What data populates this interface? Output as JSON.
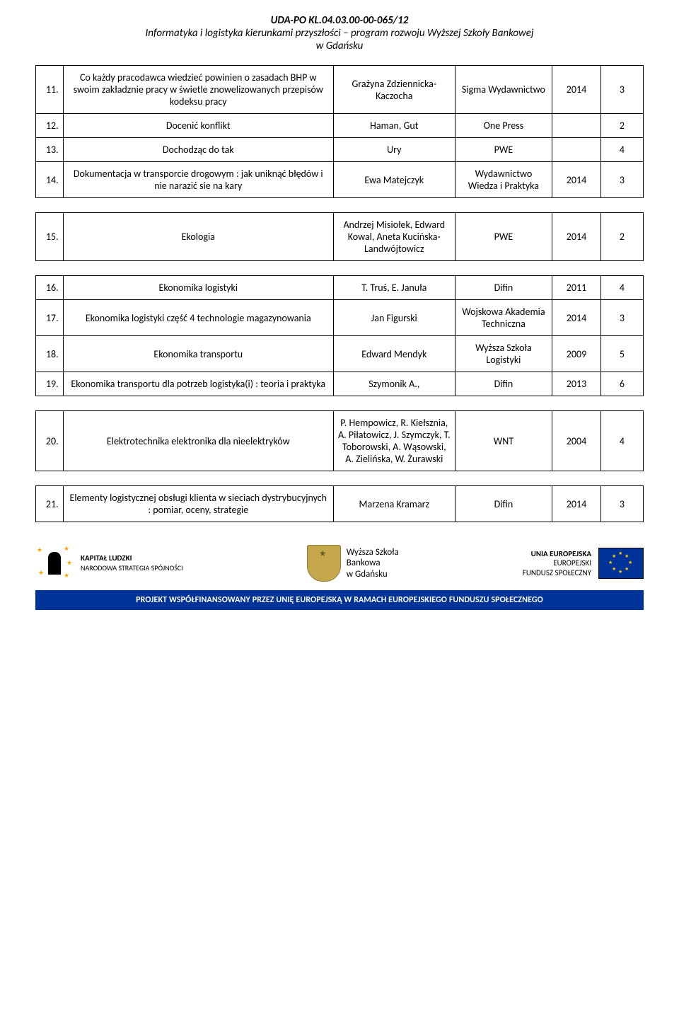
{
  "header": {
    "line1": "UDA-PO KL.04.03.00-00-065/12",
    "line2a": "Informatyka i logistyka kierunkami przyszłości – program rozwoju Wyższej Szkoły Bankowej",
    "line2b": "w Gdańsku"
  },
  "table1": {
    "rows": [
      {
        "num": "11.",
        "title": "Co każdy pracodawca wiedzieć powinien o zasadach BHP w swoim zakładznie pracy w świetle znowelizowanych przepisów kodeksu pracy",
        "author": "Grażyna Zdziennicka-Kaczocha",
        "pub": "Sigma Wydawnictwo",
        "year": "2014",
        "qty": "3"
      },
      {
        "num": "12.",
        "title": "Docenić konflikt",
        "author": "Haman, Gut",
        "pub": "One Press",
        "year": "",
        "qty": "2"
      },
      {
        "num": "13.",
        "title": "Dochodząc do tak",
        "author": "Ury",
        "pub": "PWE",
        "year": "",
        "qty": "4"
      },
      {
        "num": "14.",
        "title": "Dokumentacja w transporcie drogowym : jak uniknąć błędów i nie narazić sie na kary",
        "author": "Ewa Matejczyk",
        "pub": "Wydawnictwo Wiedza i Praktyka",
        "year": "2014",
        "qty": "3"
      }
    ]
  },
  "table2": {
    "rows": [
      {
        "num": "15.",
        "title": "Ekologia",
        "author": "Andrzej Misiołek, Edward Kowal, Aneta Kucińska-Landwójtowicz",
        "pub": "PWE",
        "year": "2014",
        "qty": "2"
      }
    ]
  },
  "table3": {
    "rows": [
      {
        "num": "16.",
        "title": "Ekonomika logistyki",
        "author": "T. Truś, E. Januła",
        "pub": "Difin",
        "year": "2011",
        "qty": "4"
      },
      {
        "num": "17.",
        "title": "Ekonomika logistyki część 4 technologie magazynowania",
        "author": "Jan Figurski",
        "pub": "Wojskowa Akademia Techniczna",
        "year": "2014",
        "qty": "3"
      },
      {
        "num": "18.",
        "title": "Ekonomika transportu",
        "author": "Edward Mendyk",
        "pub": "Wyższa Szkoła Logistyki",
        "year": "2009",
        "qty": "5"
      },
      {
        "num": "19.",
        "title": "Ekonomika transportu dla potrzeb logistyka(i) : teoria i praktyka",
        "author": "Szymonik A.,",
        "pub": "Difin",
        "year": "2013",
        "qty": "6"
      }
    ]
  },
  "table4": {
    "rows": [
      {
        "num": "20.",
        "title": "Elektrotechnika elektronika dla nieelektryków",
        "author": "P. Hempowicz, R. Kiełsznia, A. Piłatowicz, J. Szymczyk, T. Toborowski, A. Wąsowski, A. Zielińska, W. Żurawski",
        "pub": "WNT",
        "year": "2004",
        "qty": "4"
      }
    ]
  },
  "table5": {
    "rows": [
      {
        "num": "21.",
        "title": "Elementy logistycznej obsługi klienta w sieciach dystrybucyjnych : pomiar, oceny, strategie",
        "author": "Marzena Kramarz",
        "pub": "Difin",
        "year": "2014",
        "qty": "3"
      }
    ]
  },
  "footer": {
    "kl_title": "KAPITAŁ LUDZKI",
    "kl_sub": "NARODOWA STRATEGIA SPÓJNOŚCI",
    "wsb_line1": "Wyższa Szkoła",
    "wsb_line2": "Bankowa",
    "wsb_line3": "w Gdańsku",
    "eu_line1": "UNIA EUROPEJSKA",
    "eu_line2": "EUROPEJSKI",
    "eu_line3": "FUNDUSZ SPOŁECZNY",
    "project_bar": "PROJEKT WSPÓŁFINANSOWANY PRZEZ UNIĘ EUROPEJSKĄ W RAMACH EUROPEJSKIEGO FUNDUSZU SPOŁECZNEGO"
  }
}
